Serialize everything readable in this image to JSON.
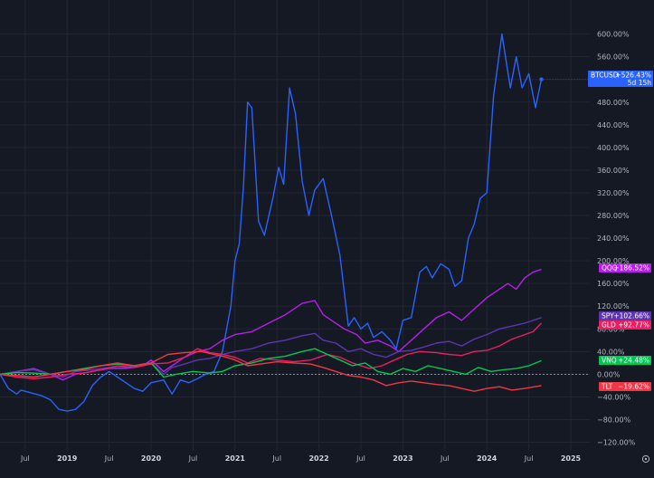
{
  "chart_data": {
    "type": "line",
    "y_unit": "%",
    "ylim": [
      -130,
      610
    ],
    "y_ticks": [
      "600.00%",
      "560.00%",
      "520.00%",
      "480.00%",
      "440.00%",
      "400.00%",
      "360.00%",
      "320.00%",
      "280.00%",
      "240.00%",
      "200.00%",
      "160.00%",
      "120.00%",
      "80.00%",
      "40.00%",
      "0.00%",
      "−40.00%",
      "−80.00%",
      "−120.00%"
    ],
    "y_tick_values": [
      600,
      560,
      520,
      480,
      440,
      400,
      360,
      320,
      280,
      240,
      200,
      160,
      120,
      80,
      40,
      0,
      -40,
      -80,
      -120
    ],
    "x_range": [
      2018.2,
      2025.3
    ],
    "x_ticks": [
      {
        "label": "Jul",
        "t": 2018.5,
        "year": false
      },
      {
        "label": "2019",
        "t": 2019.0,
        "year": true
      },
      {
        "label": "Jul",
        "t": 2019.5,
        "year": false
      },
      {
        "label": "2020",
        "t": 2020.0,
        "year": true
      },
      {
        "label": "Jul",
        "t": 2020.5,
        "year": false
      },
      {
        "label": "2021",
        "t": 2021.0,
        "year": true
      },
      {
        "label": "Jul",
        "t": 2021.5,
        "year": false
      },
      {
        "label": "2022",
        "t": 2022.0,
        "year": true
      },
      {
        "label": "Jul",
        "t": 2022.5,
        "year": false
      },
      {
        "label": "2023",
        "t": 2023.0,
        "year": true
      },
      {
        "label": "Jul",
        "t": 2023.5,
        "year": false
      },
      {
        "label": "2024",
        "t": 2024.0,
        "year": true
      },
      {
        "label": "Jul",
        "t": 2024.5,
        "year": false
      },
      {
        "label": "2025",
        "t": 2025.0,
        "year": true
      }
    ],
    "grid": true,
    "series": [
      {
        "name": "BTCUSD",
        "color": "#2962ff",
        "last_label": "+526.43%",
        "sub_label": "5d 15h",
        "points": [
          [
            2018.2,
            0
          ],
          [
            2018.3,
            -25
          ],
          [
            2018.4,
            -35
          ],
          [
            2018.45,
            -28
          ],
          [
            2018.55,
            -32
          ],
          [
            2018.7,
            -38
          ],
          [
            2018.8,
            -45
          ],
          [
            2018.9,
            -62
          ],
          [
            2019.0,
            -65
          ],
          [
            2019.1,
            -62
          ],
          [
            2019.2,
            -48
          ],
          [
            2019.3,
            -20
          ],
          [
            2019.4,
            -5
          ],
          [
            2019.5,
            5
          ],
          [
            2019.6,
            -5
          ],
          [
            2019.7,
            -15
          ],
          [
            2019.8,
            -25
          ],
          [
            2019.9,
            -30
          ],
          [
            2020.0,
            -15
          ],
          [
            2020.15,
            -10
          ],
          [
            2020.25,
            -35
          ],
          [
            2020.35,
            -10
          ],
          [
            2020.45,
            -15
          ],
          [
            2020.55,
            -8
          ],
          [
            2020.65,
            0
          ],
          [
            2020.75,
            5
          ],
          [
            2020.85,
            40
          ],
          [
            2020.95,
            120
          ],
          [
            2021.0,
            200
          ],
          [
            2021.05,
            230
          ],
          [
            2021.1,
            330
          ],
          [
            2021.15,
            480
          ],
          [
            2021.2,
            470
          ],
          [
            2021.28,
            270
          ],
          [
            2021.35,
            245
          ],
          [
            2021.45,
            310
          ],
          [
            2021.52,
            365
          ],
          [
            2021.58,
            335
          ],
          [
            2021.65,
            505
          ],
          [
            2021.72,
            460
          ],
          [
            2021.8,
            340
          ],
          [
            2021.88,
            280
          ],
          [
            2021.95,
            325
          ],
          [
            2022.05,
            345
          ],
          [
            2022.15,
            280
          ],
          [
            2022.25,
            210
          ],
          [
            2022.35,
            85
          ],
          [
            2022.42,
            100
          ],
          [
            2022.5,
            80
          ],
          [
            2022.58,
            90
          ],
          [
            2022.65,
            65
          ],
          [
            2022.75,
            75
          ],
          [
            2022.85,
            60
          ],
          [
            2022.92,
            45
          ],
          [
            2023.0,
            95
          ],
          [
            2023.1,
            100
          ],
          [
            2023.2,
            180
          ],
          [
            2023.28,
            190
          ],
          [
            2023.35,
            170
          ],
          [
            2023.45,
            195
          ],
          [
            2023.55,
            185
          ],
          [
            2023.62,
            155
          ],
          [
            2023.7,
            165
          ],
          [
            2023.78,
            240
          ],
          [
            2023.85,
            265
          ],
          [
            2023.92,
            310
          ],
          [
            2024.0,
            320
          ],
          [
            2024.08,
            490
          ],
          [
            2024.18,
            600
          ],
          [
            2024.28,
            505
          ],
          [
            2024.35,
            560
          ],
          [
            2024.42,
            505
          ],
          [
            2024.5,
            530
          ],
          [
            2024.58,
            470
          ],
          [
            2024.65,
            520
          ]
        ]
      },
      {
        "name": "QQQ",
        "color": "#b81eeb",
        "last_label": "+186.52%",
        "sub_label": "",
        "points": [
          [
            2018.2,
            0
          ],
          [
            2018.4,
            5
          ],
          [
            2018.6,
            10
          ],
          [
            2018.8,
            0
          ],
          [
            2018.95,
            -10
          ],
          [
            2019.1,
            0
          ],
          [
            2019.3,
            5
          ],
          [
            2019.5,
            10
          ],
          [
            2019.7,
            10
          ],
          [
            2019.9,
            15
          ],
          [
            2020.0,
            25
          ],
          [
            2020.15,
            5
          ],
          [
            2020.25,
            15
          ],
          [
            2020.4,
            30
          ],
          [
            2020.55,
            40
          ],
          [
            2020.7,
            45
          ],
          [
            2020.85,
            60
          ],
          [
            2021.0,
            70
          ],
          [
            2021.2,
            75
          ],
          [
            2021.4,
            90
          ],
          [
            2021.6,
            105
          ],
          [
            2021.8,
            125
          ],
          [
            2021.95,
            130
          ],
          [
            2022.05,
            105
          ],
          [
            2022.15,
            95
          ],
          [
            2022.3,
            80
          ],
          [
            2022.45,
            70
          ],
          [
            2022.55,
            55
          ],
          [
            2022.7,
            60
          ],
          [
            2022.85,
            50
          ],
          [
            2022.95,
            40
          ],
          [
            2023.1,
            60
          ],
          [
            2023.25,
            80
          ],
          [
            2023.4,
            100
          ],
          [
            2023.55,
            110
          ],
          [
            2023.7,
            95
          ],
          [
            2023.85,
            115
          ],
          [
            2024.0,
            135
          ],
          [
            2024.15,
            150
          ],
          [
            2024.25,
            160
          ],
          [
            2024.35,
            150
          ],
          [
            2024.45,
            170
          ],
          [
            2024.55,
            180
          ],
          [
            2024.65,
            185
          ]
        ]
      },
      {
        "name": "SPY",
        "color": "#5e35b1",
        "last_label": "+102.66%",
        "sub_label": "",
        "points": [
          [
            2018.2,
            0
          ],
          [
            2018.4,
            5
          ],
          [
            2018.6,
            8
          ],
          [
            2018.8,
            0
          ],
          [
            2018.95,
            -5
          ],
          [
            2019.1,
            5
          ],
          [
            2019.3,
            8
          ],
          [
            2019.5,
            12
          ],
          [
            2019.7,
            12
          ],
          [
            2019.9,
            18
          ],
          [
            2020.0,
            20
          ],
          [
            2020.15,
            0
          ],
          [
            2020.25,
            12
          ],
          [
            2020.4,
            18
          ],
          [
            2020.55,
            25
          ],
          [
            2020.7,
            28
          ],
          [
            2020.85,
            35
          ],
          [
            2021.0,
            40
          ],
          [
            2021.2,
            45
          ],
          [
            2021.4,
            55
          ],
          [
            2021.6,
            60
          ],
          [
            2021.8,
            68
          ],
          [
            2021.95,
            72
          ],
          [
            2022.05,
            60
          ],
          [
            2022.2,
            55
          ],
          [
            2022.35,
            40
          ],
          [
            2022.5,
            45
          ],
          [
            2022.65,
            35
          ],
          [
            2022.8,
            30
          ],
          [
            2022.95,
            40
          ],
          [
            2023.1,
            42
          ],
          [
            2023.25,
            48
          ],
          [
            2023.4,
            55
          ],
          [
            2023.55,
            58
          ],
          [
            2023.7,
            50
          ],
          [
            2023.85,
            62
          ],
          [
            2024.0,
            70
          ],
          [
            2024.15,
            80
          ],
          [
            2024.3,
            85
          ],
          [
            2024.45,
            90
          ],
          [
            2024.65,
            100
          ]
        ]
      },
      {
        "name": "GLD",
        "color": "#e91e63",
        "last_label": "+92.77%",
        "sub_label": "",
        "points": [
          [
            2018.2,
            0
          ],
          [
            2018.4,
            -5
          ],
          [
            2018.6,
            -8
          ],
          [
            2018.8,
            -5
          ],
          [
            2019.0,
            0
          ],
          [
            2019.2,
            2
          ],
          [
            2019.4,
            8
          ],
          [
            2019.6,
            15
          ],
          [
            2019.8,
            12
          ],
          [
            2020.0,
            18
          ],
          [
            2020.2,
            20
          ],
          [
            2020.4,
            30
          ],
          [
            2020.55,
            45
          ],
          [
            2020.7,
            38
          ],
          [
            2020.85,
            35
          ],
          [
            2021.0,
            30
          ],
          [
            2021.15,
            20
          ],
          [
            2021.3,
            28
          ],
          [
            2021.5,
            25
          ],
          [
            2021.7,
            22
          ],
          [
            2021.9,
            25
          ],
          [
            2022.1,
            35
          ],
          [
            2022.25,
            30
          ],
          [
            2022.4,
            20
          ],
          [
            2022.6,
            10
          ],
          [
            2022.75,
            15
          ],
          [
            2022.9,
            25
          ],
          [
            2023.05,
            35
          ],
          [
            2023.2,
            40
          ],
          [
            2023.4,
            38
          ],
          [
            2023.55,
            35
          ],
          [
            2023.7,
            33
          ],
          [
            2023.85,
            40
          ],
          [
            2024.0,
            42
          ],
          [
            2024.15,
            50
          ],
          [
            2024.3,
            62
          ],
          [
            2024.45,
            70
          ],
          [
            2024.55,
            75
          ],
          [
            2024.65,
            90
          ]
        ]
      },
      {
        "name": "VNQ",
        "color": "#00c853",
        "last_label": "+24.48%",
        "sub_label": "",
        "points": [
          [
            2018.2,
            0
          ],
          [
            2018.4,
            3
          ],
          [
            2018.6,
            2
          ],
          [
            2018.8,
            0
          ],
          [
            2019.0,
            5
          ],
          [
            2019.2,
            10
          ],
          [
            2019.4,
            15
          ],
          [
            2019.6,
            18
          ],
          [
            2019.8,
            15
          ],
          [
            2020.0,
            20
          ],
          [
            2020.15,
            -5
          ],
          [
            2020.3,
            0
          ],
          [
            2020.5,
            5
          ],
          [
            2020.7,
            2
          ],
          [
            2020.85,
            5
          ],
          [
            2021.0,
            15
          ],
          [
            2021.2,
            20
          ],
          [
            2021.4,
            28
          ],
          [
            2021.6,
            32
          ],
          [
            2021.8,
            40
          ],
          [
            2021.95,
            45
          ],
          [
            2022.1,
            35
          ],
          [
            2022.25,
            25
          ],
          [
            2022.4,
            15
          ],
          [
            2022.55,
            20
          ],
          [
            2022.7,
            5
          ],
          [
            2022.85,
            0
          ],
          [
            2023.0,
            10
          ],
          [
            2023.15,
            5
          ],
          [
            2023.3,
            15
          ],
          [
            2023.45,
            10
          ],
          [
            2023.6,
            5
          ],
          [
            2023.75,
            0
          ],
          [
            2023.9,
            12
          ],
          [
            2024.05,
            5
          ],
          [
            2024.2,
            8
          ],
          [
            2024.35,
            10
          ],
          [
            2024.5,
            15
          ],
          [
            2024.65,
            24
          ]
        ]
      },
      {
        "name": "TLT",
        "color": "#f23645",
        "last_label": "−19.62%",
        "sub_label": "",
        "points": [
          [
            2018.2,
            0
          ],
          [
            2018.4,
            -2
          ],
          [
            2018.6,
            -5
          ],
          [
            2018.8,
            0
          ],
          [
            2019.0,
            5
          ],
          [
            2019.2,
            8
          ],
          [
            2019.4,
            15
          ],
          [
            2019.6,
            20
          ],
          [
            2019.8,
            15
          ],
          [
            2020.0,
            20
          ],
          [
            2020.2,
            35
          ],
          [
            2020.4,
            38
          ],
          [
            2020.6,
            40
          ],
          [
            2020.75,
            35
          ],
          [
            2020.9,
            30
          ],
          [
            2021.0,
            25
          ],
          [
            2021.15,
            15
          ],
          [
            2021.3,
            18
          ],
          [
            2021.5,
            22
          ],
          [
            2021.7,
            20
          ],
          [
            2021.9,
            18
          ],
          [
            2022.05,
            12
          ],
          [
            2022.2,
            5
          ],
          [
            2022.35,
            -2
          ],
          [
            2022.5,
            -5
          ],
          [
            2022.65,
            -10
          ],
          [
            2022.8,
            -20
          ],
          [
            2022.95,
            -15
          ],
          [
            2023.1,
            -12
          ],
          [
            2023.25,
            -15
          ],
          [
            2023.4,
            -18
          ],
          [
            2023.55,
            -20
          ],
          [
            2023.7,
            -25
          ],
          [
            2023.85,
            -30
          ],
          [
            2024.0,
            -25
          ],
          [
            2024.15,
            -22
          ],
          [
            2024.3,
            -28
          ],
          [
            2024.45,
            -25
          ],
          [
            2024.65,
            -20
          ]
        ]
      }
    ]
  }
}
